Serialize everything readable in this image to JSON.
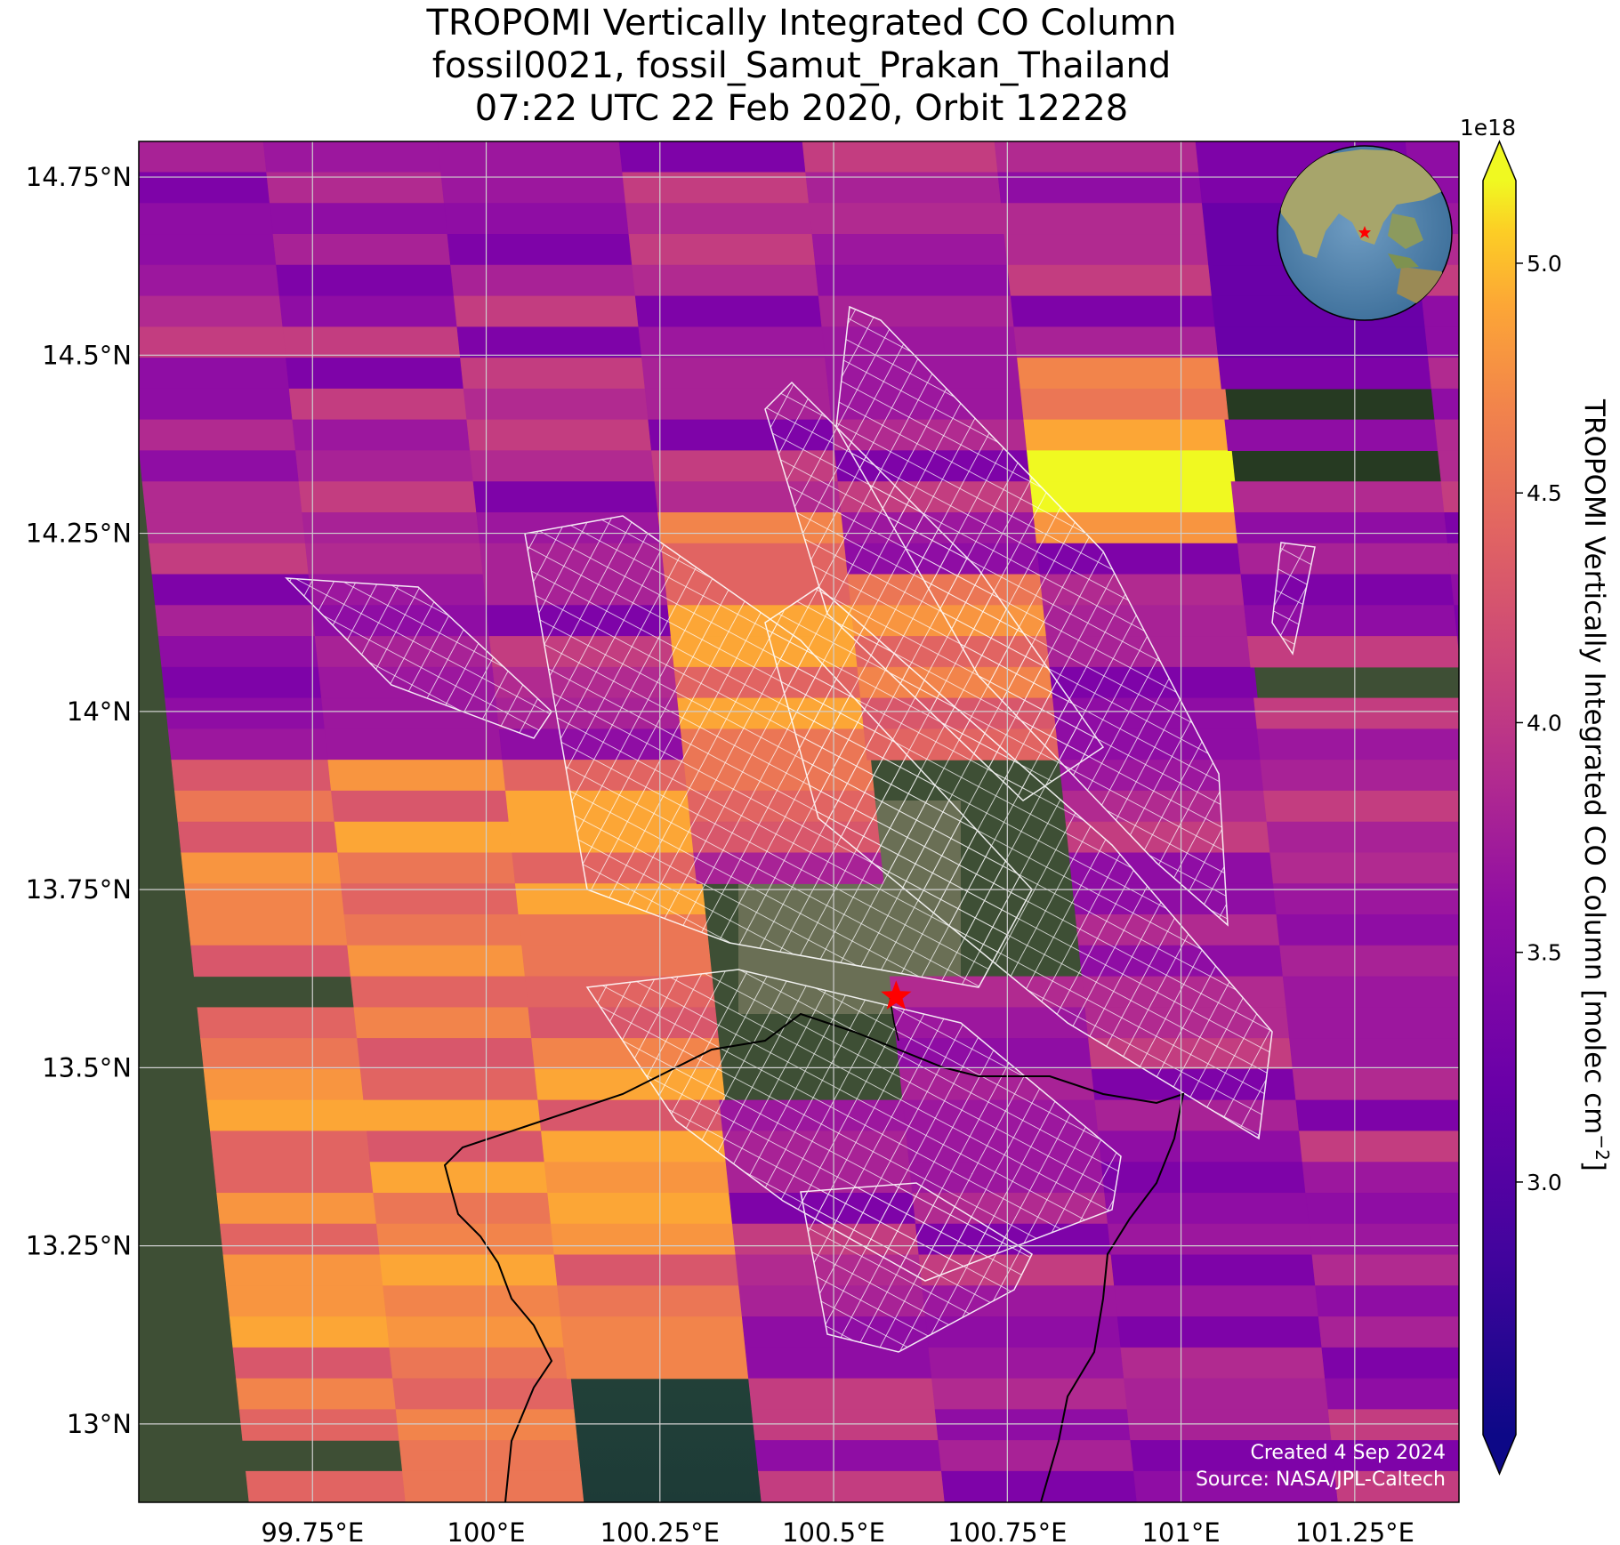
{
  "title": {
    "line1": "TROPOMI Vertically Integrated CO Column",
    "line2": "fossil0021, fossil_Samut_Prakan_Thailand",
    "line3": "07:22 UTC 22 Feb 2020, Orbit 12228"
  },
  "map": {
    "lon_ticks": [
      "99.75°E",
      "100°E",
      "100.25°E",
      "100.5°E",
      "100.75°E",
      "101°E",
      "101.25°E"
    ],
    "lat_ticks": [
      "14.75°N",
      "14.5°N",
      "14.25°N",
      "14°N",
      "13.75°N",
      "13.5°N",
      "13.25°N",
      "13°N"
    ],
    "extent": {
      "lon": [
        99.5,
        101.4
      ],
      "lat": [
        12.89,
        14.8
      ]
    },
    "target": {
      "name_icon": "star-marker-icon",
      "lon": 100.59,
      "lat": 13.6,
      "color": "#ff0000"
    },
    "credits": {
      "created": "Created 4 Sep 2024",
      "source": "Source: NASA/JPL-Caltech"
    }
  },
  "colorbar": {
    "label": "TROPOMI Vertically Integrated CO Column [molec cm$^{-2}$]",
    "label_main": "TROPOMI Vertically Integrated CO Column [molec cm",
    "label_exp": "−2",
    "label_close": "]",
    "multiplier": "1e18",
    "ticks": [
      "3.0",
      "3.5",
      "4.0",
      "4.5",
      "5.0"
    ],
    "range": [
      2.45,
      5.18
    ],
    "colormap": "plasma",
    "extend": "both"
  },
  "inset": {
    "name": "globe-inset",
    "marker_color": "#ff0000"
  }
}
